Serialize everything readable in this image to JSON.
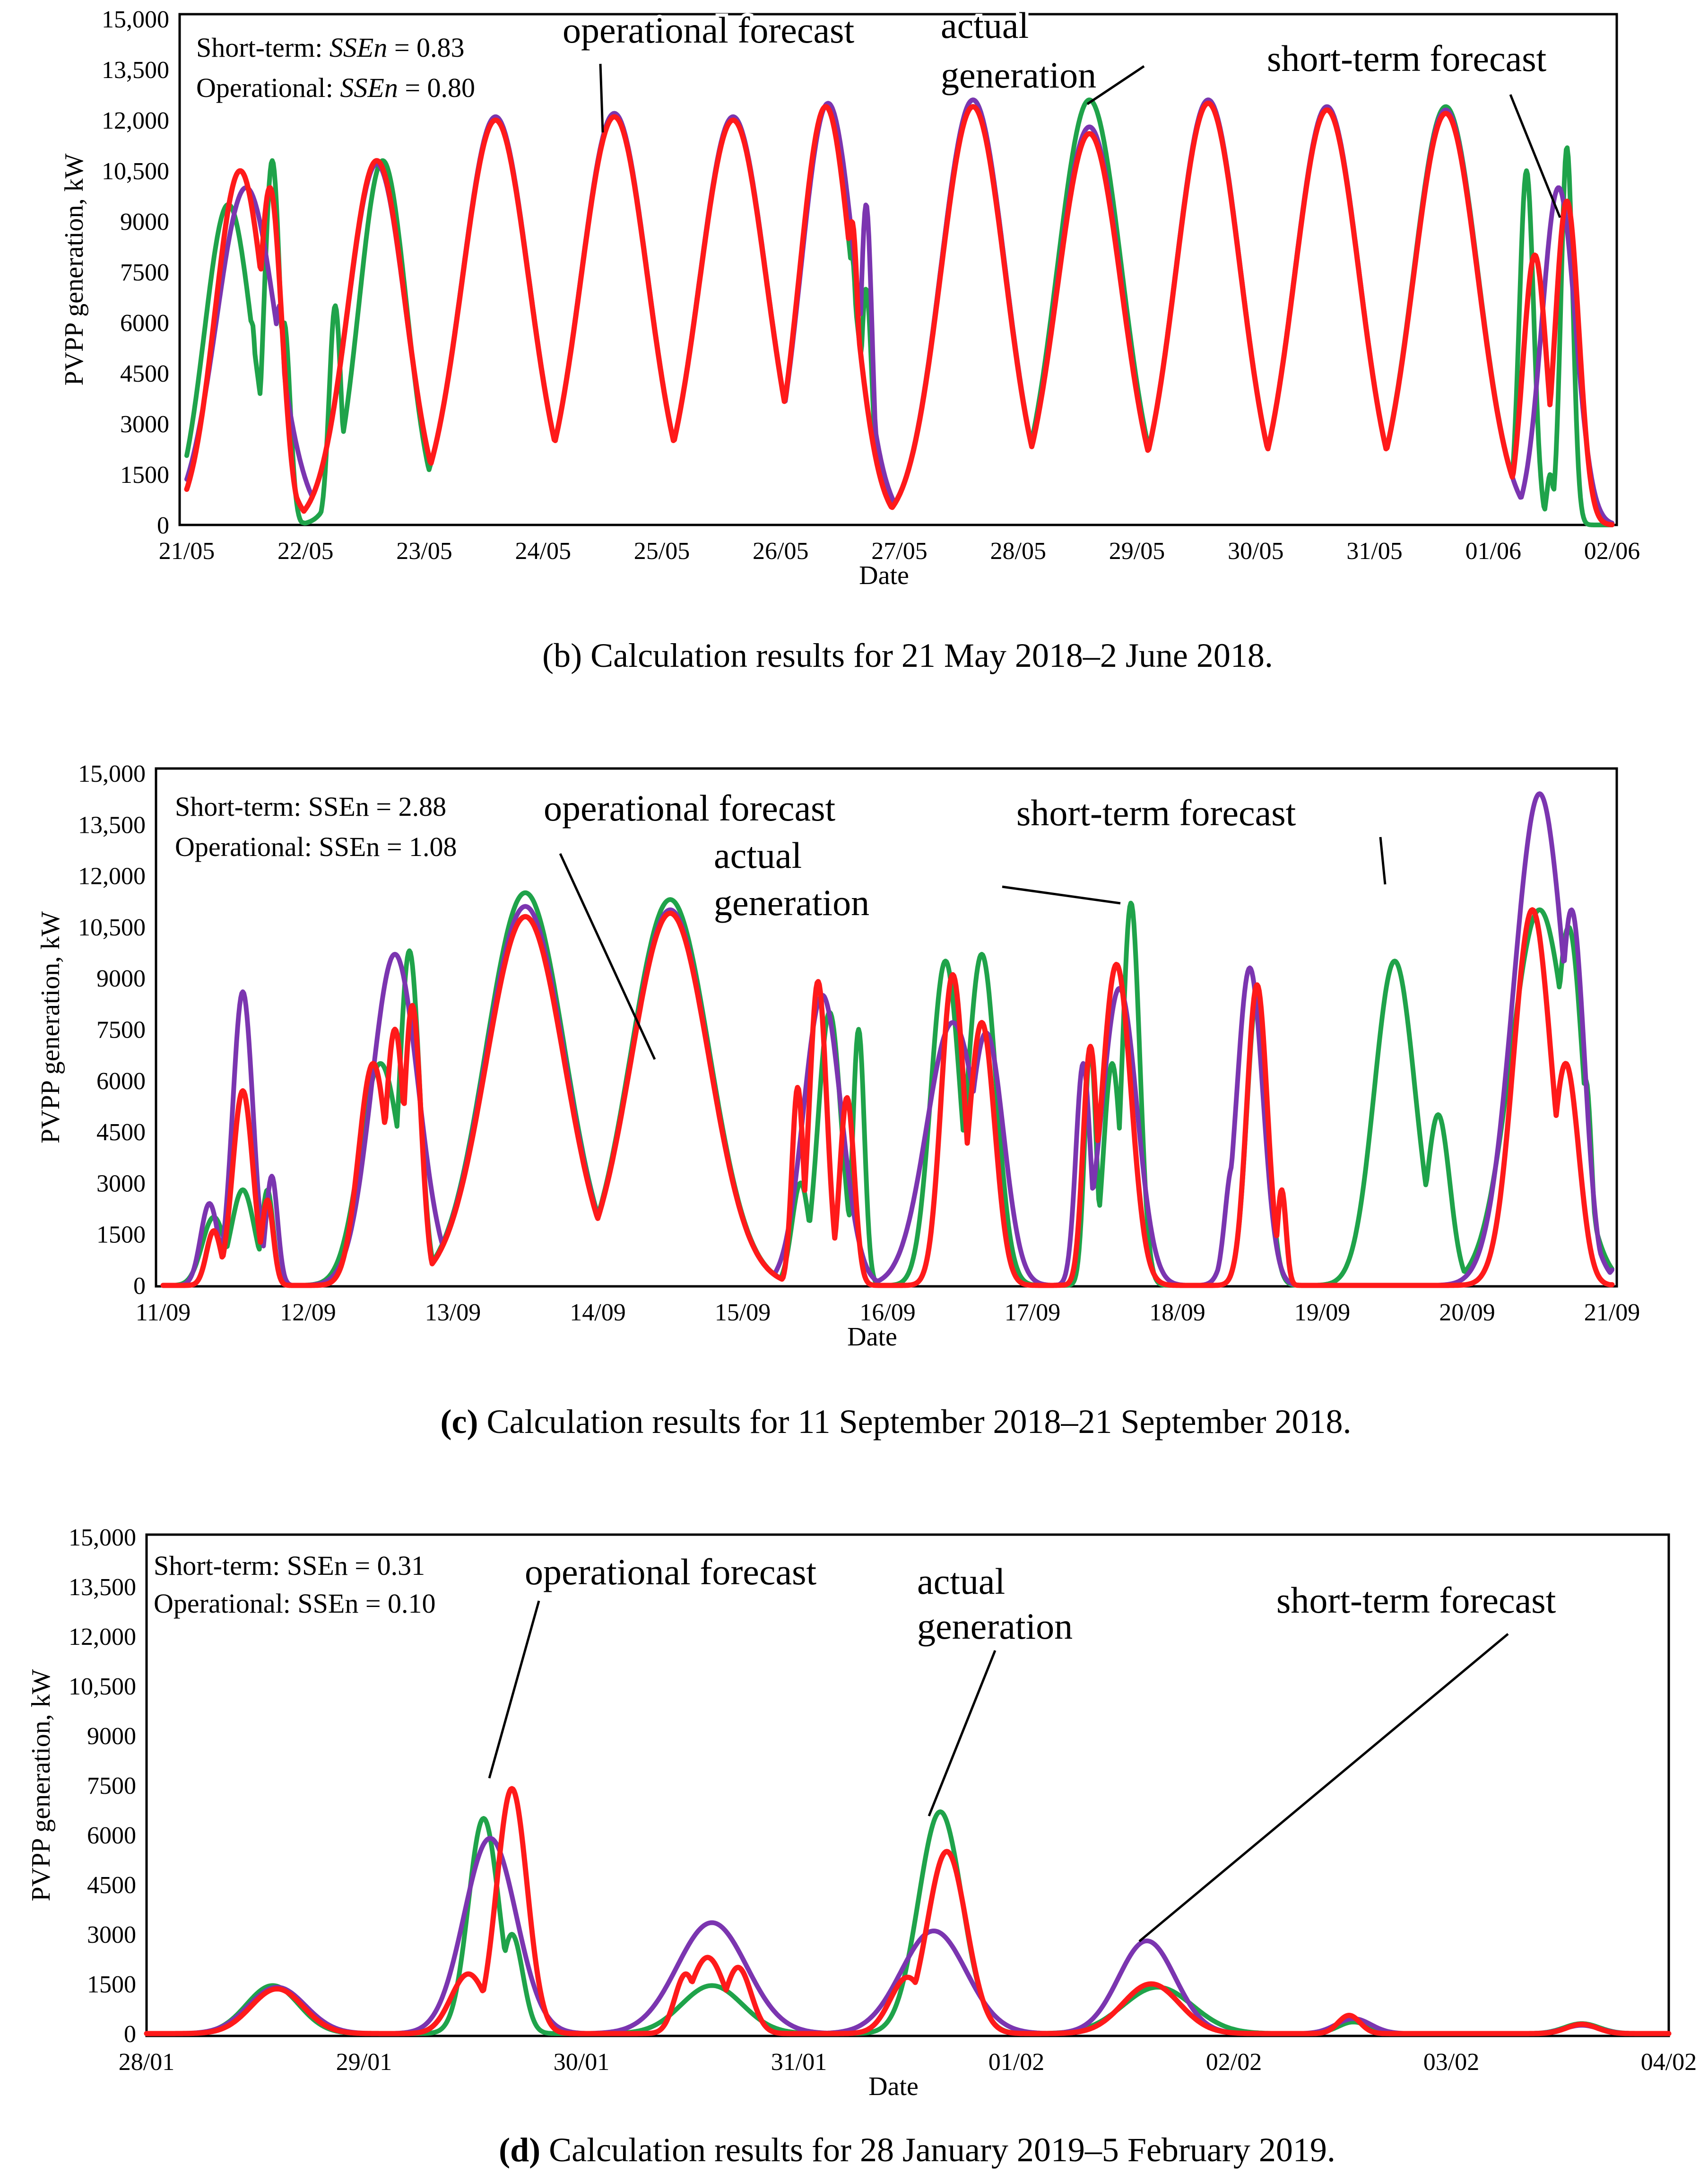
{
  "chart_data": [
    {
      "type": "line",
      "caption_prefix": "(b)",
      "caption": " Calculation results for 21 May 2018–2 June 2018.",
      "xlabel": "Date",
      "ylabel": "PVPP generation, kW",
      "x_tick_labels": [
        "21/05",
        "22/05",
        "23/05",
        "24/05",
        "25/05",
        "26/05",
        "27/05",
        "28/05",
        "29/05",
        "30/05",
        "31/05",
        "01/06",
        "02/06"
      ],
      "y_tick_labels": [
        "0",
        "1500",
        "3000",
        "4500",
        "6000",
        "7500",
        "9000",
        "10,500",
        "12,000",
        "13,500",
        "15,000"
      ],
      "ylim": [
        0,
        15000
      ],
      "xlim_days": [
        0,
        12
      ],
      "stats": [
        {
          "prefix": "Short-term: ",
          "metric": "SSEn",
          "value": " = 0.83"
        },
        {
          "prefix": "Operational: ",
          "metric": "SSEn",
          "value": " = 0.80"
        }
      ],
      "metric_italic": true,
      "annotations": [
        "operational forecast",
        "actual",
        "generation",
        "short-term forecast"
      ],
      "colors": {
        "actual": "#1fa34a",
        "short_term": "#7b35b0",
        "operational": "#ff1a1a"
      },
      "series": [
        {
          "key": "actual",
          "peaks": [
            [
              0.35,
              9500,
              0.2
            ],
            [
              0.55,
              6000,
              0.04
            ],
            [
              0.72,
              10800,
              0.07
            ],
            [
              0.82,
              6000,
              0.05
            ],
            [
              1.25,
              6500,
              0.05
            ],
            [
              1.65,
              10800,
              0.2
            ],
            [
              2.6,
              12100,
              0.28
            ],
            [
              3.6,
              12200,
              0.28
            ],
            [
              4.6,
              12100,
              0.28
            ],
            [
              5.38,
              12400,
              0.22
            ],
            [
              5.6,
              8000,
              0.05
            ],
            [
              5.72,
              7000,
              0.05
            ],
            [
              6.62,
              12600,
              0.27
            ],
            [
              7.6,
              12600,
              0.27
            ],
            [
              8.6,
              12600,
              0.27
            ],
            [
              9.6,
              12400,
              0.27
            ],
            [
              10.6,
              12400,
              0.27
            ],
            [
              11.28,
              10500,
              0.06
            ],
            [
              11.48,
              1500,
              0.03
            ],
            [
              11.62,
              11200,
              0.05
            ]
          ]
        },
        {
          "key": "short_term",
          "peaks": [
            [
              0.5,
              10000,
              0.25
            ],
            [
              0.78,
              6500,
              0.05
            ],
            [
              1.6,
              10700,
              0.24
            ],
            [
              2.6,
              12100,
              0.28
            ],
            [
              3.6,
              12200,
              0.28
            ],
            [
              4.6,
              12100,
              0.28
            ],
            [
              5.4,
              12500,
              0.23
            ],
            [
              5.72,
              9500,
              0.05
            ],
            [
              6.62,
              12600,
              0.27
            ],
            [
              7.6,
              11800,
              0.27
            ],
            [
              8.6,
              12600,
              0.27
            ],
            [
              9.6,
              12400,
              0.27
            ],
            [
              10.6,
              12300,
              0.27
            ],
            [
              11.55,
              10000,
              0.14
            ]
          ]
        },
        {
          "key": "operational",
          "peaks": [
            [
              0.45,
              10500,
              0.21
            ],
            [
              0.7,
              10000,
              0.1
            ],
            [
              1.6,
              10800,
              0.24
            ],
            [
              2.6,
              12000,
              0.28
            ],
            [
              3.6,
              12100,
              0.28
            ],
            [
              4.6,
              12000,
              0.28
            ],
            [
              5.38,
              12400,
              0.22
            ],
            [
              5.6,
              9000,
              0.06
            ],
            [
              6.62,
              12400,
              0.27
            ],
            [
              7.6,
              11600,
              0.27
            ],
            [
              8.6,
              12500,
              0.27
            ],
            [
              9.6,
              12300,
              0.27
            ],
            [
              10.6,
              12200,
              0.27
            ],
            [
              11.35,
              8000,
              0.1
            ],
            [
              11.62,
              9600,
              0.1
            ]
          ]
        }
      ]
    },
    {
      "type": "line",
      "caption_prefix": "(c)",
      "caption": " Calculation results for 11 September 2018–21 September 2018.",
      "xlabel": "Date",
      "ylabel": "PVPP generation, kW",
      "x_tick_labels": [
        "11/09",
        "12/09",
        "13/09",
        "14/09",
        "15/09",
        "16/09",
        "17/09",
        "18/09",
        "19/09",
        "20/09",
        "21/09"
      ],
      "y_tick_labels": [
        "0",
        "1500",
        "3000",
        "4500",
        "6000",
        "7500",
        "9000",
        "10,500",
        "12,000",
        "13,500",
        "15,000"
      ],
      "ylim": [
        0,
        15000
      ],
      "xlim_days": [
        0,
        10
      ],
      "stats": [
        {
          "prefix": "Short-term: ",
          "metric": "SSEn",
          "value": " = 2.88"
        },
        {
          "prefix": "Operational: ",
          "metric": "SSEn",
          "value": " = 1.08"
        }
      ],
      "metric_italic": false,
      "annotations": [
        "operational forecast",
        "actual",
        "generation",
        "short-term forecast"
      ],
      "colors": {
        "actual": "#1fa34a",
        "short_term": "#7b35b0",
        "operational": "#ff1a1a"
      },
      "series": [
        {
          "key": "actual",
          "peaks": [
            [
              0.35,
              2000,
              0.08
            ],
            [
              0.55,
              2800,
              0.08
            ],
            [
              0.72,
              2800,
              0.04
            ],
            [
              1.5,
              6500,
              0.14
            ],
            [
              1.7,
              9800,
              0.07
            ],
            [
              2.5,
              11500,
              0.27
            ],
            [
              3.5,
              11300,
              0.27
            ],
            [
              4.4,
              3000,
              0.06
            ],
            [
              4.6,
              8000,
              0.08
            ],
            [
              4.8,
              7500,
              0.04
            ],
            [
              5.4,
              9500,
              0.1
            ],
            [
              5.65,
              9700,
              0.1
            ],
            [
              6.4,
              7000,
              0.04
            ],
            [
              6.55,
              6500,
              0.06
            ],
            [
              6.68,
              11200,
              0.06
            ],
            [
              7.55,
              8500,
              0.07
            ],
            [
              8.5,
              9500,
              0.14
            ],
            [
              8.8,
              5000,
              0.08
            ],
            [
              9.5,
              11000,
              0.2
            ],
            [
              9.7,
              10500,
              0.1
            ],
            [
              9.82,
              6000,
              0.04
            ]
          ]
        },
        {
          "key": "short_term",
          "peaks": [
            [
              0.32,
              2400,
              0.06
            ],
            [
              0.55,
              8600,
              0.07
            ],
            [
              0.75,
              3200,
              0.04
            ],
            [
              1.6,
              9700,
              0.16
            ],
            [
              2.5,
              11100,
              0.27
            ],
            [
              3.5,
              11000,
              0.27
            ],
            [
              4.55,
              8500,
              0.13
            ],
            [
              5.45,
              7700,
              0.18
            ],
            [
              5.68,
              7400,
              0.12
            ],
            [
              6.35,
              6500,
              0.05
            ],
            [
              6.6,
              8700,
              0.12
            ],
            [
              7.5,
              9300,
              0.09
            ],
            [
              7.38,
              3500,
              0.05
            ],
            [
              9.5,
              14400,
              0.18
            ],
            [
              9.72,
              11000,
              0.09
            ],
            [
              10.5,
              14500,
              0.19
            ],
            [
              10.72,
              12000,
              0.09
            ]
          ]
        },
        {
          "key": "operational",
          "peaks": [
            [
              0.35,
              1600,
              0.05
            ],
            [
              0.55,
              5700,
              0.07
            ],
            [
              0.72,
              2500,
              0.04
            ],
            [
              1.45,
              6500,
              0.1
            ],
            [
              1.6,
              7500,
              0.07
            ],
            [
              1.72,
              8200,
              0.06
            ],
            [
              2.5,
              10800,
              0.27
            ],
            [
              3.5,
              10900,
              0.27
            ],
            [
              4.38,
              5800,
              0.04
            ],
            [
              4.52,
              8900,
              0.06
            ],
            [
              4.72,
              5500,
              0.05
            ],
            [
              5.45,
              9100,
              0.08
            ],
            [
              5.65,
              7700,
              0.09
            ],
            [
              6.4,
              7000,
              0.05
            ],
            [
              6.58,
              9400,
              0.1
            ],
            [
              7.55,
              8800,
              0.07
            ],
            [
              7.72,
              2800,
              0.03
            ],
            [
              9.45,
              11000,
              0.13
            ],
            [
              9.68,
              6500,
              0.09
            ],
            [
              10.5,
              12300,
              0.14
            ],
            [
              10.68,
              10200,
              0.08
            ]
          ]
        }
      ]
    },
    {
      "type": "line",
      "caption_prefix": "(d)",
      "caption": " Calculation results for 28 January 2019–5 February 2019.",
      "xlabel": "Date",
      "ylabel": "PVPP generation, kW",
      "x_tick_labels": [
        "28/01",
        "29/01",
        "30/01",
        "31/01",
        "01/02",
        "02/02",
        "03/02",
        "04/02"
      ],
      "y_tick_labels": [
        "0",
        "1500",
        "3000",
        "4500",
        "6000",
        "7500",
        "9000",
        "10,500",
        "12,000",
        "13,500",
        "15,000"
      ],
      "ylim": [
        0,
        15000
      ],
      "xlim_days": [
        0,
        7
      ],
      "stats": [
        {
          "prefix": "Short-term: ",
          "metric": "SSEn",
          "value": " = 0.31"
        },
        {
          "prefix": "Operational: ",
          "metric": "SSEn",
          "value": " = 0.10"
        }
      ],
      "metric_italic": false,
      "annotations": [
        "operational forecast",
        "actual",
        "generation",
        "short-term forecast"
      ],
      "colors": {
        "actual": "#1fa34a",
        "short_term": "#7b35b0",
        "operational": "#ff1a1a"
      },
      "series": [
        {
          "key": "actual",
          "peaks": [
            [
              0.58,
              1450,
              0.12
            ],
            [
              1.55,
              6500,
              0.07
            ],
            [
              1.68,
              3000,
              0.05
            ],
            [
              2.6,
              1450,
              0.14
            ],
            [
              3.65,
              6700,
              0.1
            ],
            [
              4.65,
              1400,
              0.16
            ],
            [
              5.55,
              350,
              0.07
            ],
            [
              6.6,
              300,
              0.08
            ]
          ]
        },
        {
          "key": "short_term",
          "peaks": [
            [
              0.6,
              1400,
              0.13
            ],
            [
              1.58,
              5900,
              0.12
            ],
            [
              2.6,
              3350,
              0.16
            ],
            [
              3.62,
              3100,
              0.15
            ],
            [
              4.6,
              2800,
              0.13
            ],
            [
              5.55,
              450,
              0.08
            ],
            [
              6.6,
              250,
              0.08
            ]
          ]
        },
        {
          "key": "operational",
          "peaks": [
            [
              0.6,
              1350,
              0.12
            ],
            [
              1.68,
              7400,
              0.07
            ],
            [
              1.48,
              1800,
              0.08
            ],
            [
              2.48,
              1800,
              0.05
            ],
            [
              2.58,
              2300,
              0.08
            ],
            [
              2.72,
              2000,
              0.06
            ],
            [
              3.68,
              5500,
              0.09
            ],
            [
              3.5,
              1700,
              0.08
            ],
            [
              4.62,
              1500,
              0.13
            ],
            [
              5.53,
              550,
              0.05
            ],
            [
              6.6,
              280,
              0.07
            ]
          ]
        }
      ]
    }
  ]
}
